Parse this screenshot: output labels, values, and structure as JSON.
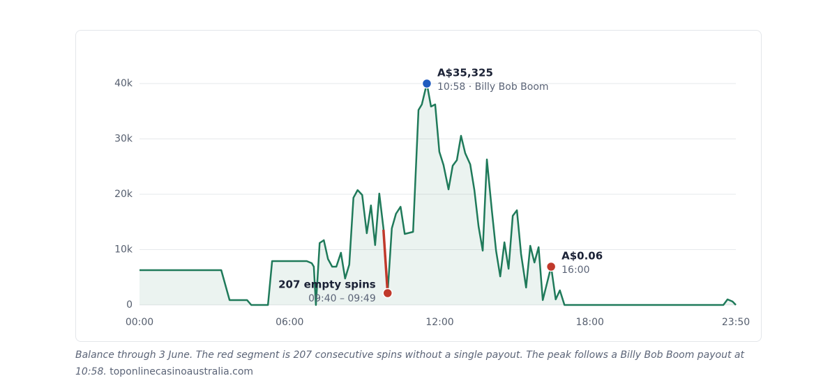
{
  "chart_data": {
    "type": "line",
    "x": [
      0,
      196,
      216,
      258,
      268,
      308,
      318,
      401,
      413,
      418,
      423,
      432,
      442,
      452,
      462,
      472,
      483,
      493,
      503,
      513,
      523,
      534,
      545,
      555,
      565,
      575,
      585,
      595,
      605,
      615,
      626,
      636,
      656,
      669,
      677,
      689,
      699,
      709,
      719,
      729,
      741,
      751,
      761,
      771,
      781,
      793,
      803,
      813,
      823,
      833,
      845,
      855,
      865,
      875,
      885,
      895,
      905,
      915,
      927,
      937,
      947,
      957,
      967,
      987,
      998,
      1008,
      1019,
      1400,
      1410,
      1422,
      1430
    ],
    "series": [
      {
        "color": "#1f7a5a",
        "values": [
          6290,
          6290,
          880,
          880,
          0,
          0,
          7925,
          7925,
          7547,
          6918,
          0,
          11195,
          11698,
          8302,
          6918,
          6918,
          9434,
          4780,
          7296,
          19371,
          20755,
          19874,
          12956,
          17987,
          10818,
          20126,
          13836,
          2138,
          13836,
          16478,
          17736,
          12830,
          13208,
          35220,
          36226,
          40000,
          35849,
          36226,
          27673,
          25283,
          20881,
          25157,
          26164,
          30566,
          27421,
          25409,
          20755,
          14214,
          9811,
          26289,
          17000,
          9811,
          5157,
          11321,
          6541,
          16101,
          17107,
          9182,
          3145,
          10692,
          7673,
          10440,
          881,
          6918,
          1006,
          2642,
          0,
          0,
          1006,
          629,
          0
        ]
      },
      {
        "color": "#c0392b",
        "x": [
          585,
          595
        ],
        "values": [
          13585,
          2138
        ]
      }
    ],
    "xlim": [
      0,
      1430
    ],
    "xticks": [
      {
        "value": 0,
        "label": "00:00"
      },
      {
        "value": 360,
        "label": "06:00"
      },
      {
        "value": 720,
        "label": "12:00"
      },
      {
        "value": 1080,
        "label": "18:00"
      },
      {
        "value": 1430,
        "label": "23:50"
      }
    ],
    "ylim": [
      0,
      40000
    ],
    "yticks": [
      0,
      {
        "value": 10000,
        "label": "10k"
      },
      {
        "value": 20000,
        "label": "20k"
      },
      {
        "value": 30000,
        "label": "30k"
      },
      {
        "value": 40000,
        "label": "40k"
      }
    ],
    "grid": true,
    "annotations": [
      {
        "x": 689,
        "y": 40000,
        "color": "#1f5bbf",
        "label": "A$35,325",
        "sublabel": "10:58 · Billy Bob Boom",
        "side": "right"
      },
      {
        "x": 987,
        "y": 6918,
        "color": "#c0392b",
        "label": "A$0.06",
        "sublabel": "16:00",
        "side": "right"
      },
      {
        "x": 595,
        "y": 2138,
        "color": "#c0392b",
        "label": "207 empty spins",
        "sublabel": "09:40 – 09:49",
        "side": "left"
      }
    ],
    "caption": "Balance through 3 June. The red segment is 207 consecutive spins without a single payout. The peak follows a Billy Bob Boom payout at 10:58.",
    "source": "toponlinecasinoaustralia.com"
  }
}
